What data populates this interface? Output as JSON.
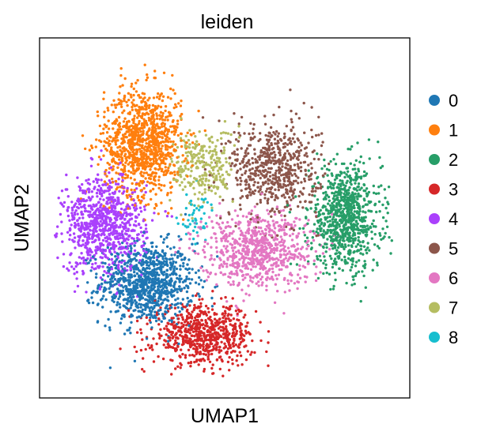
{
  "chart_data": {
    "type": "scatter",
    "title": "leiden",
    "xlabel": "UMAP1",
    "ylabel": "UMAP2",
    "xlim": [
      0,
      100
    ],
    "ylim": [
      0,
      100
    ],
    "ticks": false,
    "grid": false,
    "legend": {
      "placement": "right",
      "markers": "circle"
    },
    "series": [
      {
        "name": "0",
        "color": "#1f77b4",
        "center": [
          28,
          31
        ],
        "spread": [
          8.5,
          7.5
        ],
        "count": 950
      },
      {
        "name": "1",
        "color": "#ff7f0e",
        "center": [
          27,
          72
        ],
        "spread": [
          7,
          10
        ],
        "count": 1050
      },
      {
        "name": "2",
        "color": "#279e68",
        "center": [
          84,
          50
        ],
        "spread": [
          6.5,
          10
        ],
        "count": 850
      },
      {
        "name": "3",
        "color": "#d62728",
        "center": [
          44,
          16
        ],
        "spread": [
          9,
          5.5
        ],
        "count": 700
      },
      {
        "name": "4",
        "color": "#aa40fc",
        "center": [
          16,
          48
        ],
        "spread": [
          7.5,
          9
        ],
        "count": 850
      },
      {
        "name": "5",
        "color": "#8c564b",
        "center": [
          64,
          64
        ],
        "spread": [
          8,
          9
        ],
        "count": 600
      },
      {
        "name": "6",
        "color": "#e377c2",
        "center": [
          59,
          41
        ],
        "spread": [
          10,
          7
        ],
        "count": 750
      },
      {
        "name": "7",
        "color": "#b5bd61",
        "center": [
          44,
          65
        ],
        "spread": [
          5.5,
          7
        ],
        "count": 260
      },
      {
        "name": "8",
        "color": "#17becf",
        "center": [
          42,
          50
        ],
        "spread": [
          3.5,
          5
        ],
        "count": 50
      }
    ]
  }
}
